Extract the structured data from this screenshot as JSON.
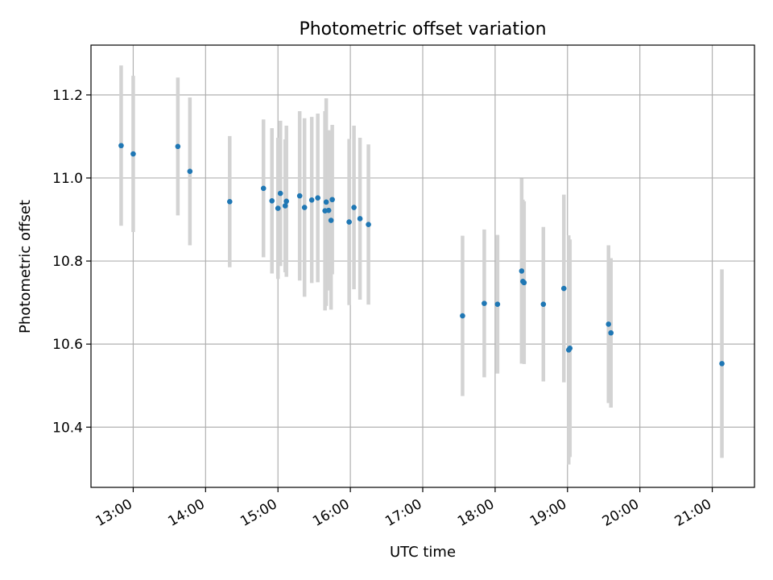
{
  "chart_data": {
    "type": "scatter",
    "title": "Photometric offset variation",
    "xlabel": "UTC time",
    "ylabel": "Photometric offset",
    "xlim": [
      "12:25",
      "21:35"
    ],
    "ylim": [
      10.255,
      11.32
    ],
    "grid": true,
    "x_ticks": [
      "13:00",
      "14:00",
      "15:00",
      "16:00",
      "17:00",
      "18:00",
      "19:00",
      "20:00",
      "21:00"
    ],
    "y_ticks": [
      "10.4",
      "10.6",
      "10.8",
      "11.0",
      "11.2"
    ],
    "colors": {
      "point": "#1f77b4",
      "error_bar": "#d3d3d3"
    },
    "series": [
      {
        "points": [
          {
            "x": "12:50",
            "y": 11.078,
            "yerr": 0.193
          },
          {
            "x": "13:00",
            "y": 11.058,
            "yerr": 0.188
          },
          {
            "x": "13:37",
            "y": 11.076,
            "yerr": 0.166
          },
          {
            "x": "13:47",
            "y": 11.016,
            "yerr": 0.178
          },
          {
            "x": "14:20",
            "y": 10.943,
            "yerr": 0.158
          },
          {
            "x": "14:48",
            "y": 10.975,
            "yerr": 0.166
          },
          {
            "x": "14:55",
            "y": 10.945,
            "yerr": 0.175
          },
          {
            "x": "15:00",
            "y": 10.927,
            "yerr": 0.17
          },
          {
            "x": "15:02",
            "y": 10.963,
            "yerr": 0.175
          },
          {
            "x": "15:06",
            "y": 10.933,
            "yerr": 0.16
          },
          {
            "x": "15:07",
            "y": 10.944,
            "yerr": 0.182
          },
          {
            "x": "15:18",
            "y": 10.957,
            "yerr": 0.204
          },
          {
            "x": "15:22",
            "y": 10.929,
            "yerr": 0.215
          },
          {
            "x": "15:28",
            "y": 10.947,
            "yerr": 0.2
          },
          {
            "x": "15:33",
            "y": 10.952,
            "yerr": 0.203
          },
          {
            "x": "15:39",
            "y": 10.921,
            "yerr": 0.24
          },
          {
            "x": "15:40",
            "y": 10.942,
            "yerr": 0.25
          },
          {
            "x": "15:42",
            "y": 10.922,
            "yerr": 0.193
          },
          {
            "x": "15:44",
            "y": 10.898,
            "yerr": 0.215
          },
          {
            "x": "15:45",
            "y": 10.948,
            "yerr": 0.18
          },
          {
            "x": "15:59",
            "y": 10.894,
            "yerr": 0.2
          },
          {
            "x": "16:03",
            "y": 10.929,
            "yerr": 0.197
          },
          {
            "x": "16:08",
            "y": 10.902,
            "yerr": 0.195
          },
          {
            "x": "16:15",
            "y": 10.888,
            "yerr": 0.193
          },
          {
            "x": "17:33",
            "y": 10.668,
            "yerr": 0.193
          },
          {
            "x": "17:51",
            "y": 10.698,
            "yerr": 0.178
          },
          {
            "x": "18:02",
            "y": 10.696,
            "yerr": 0.167
          },
          {
            "x": "18:22",
            "y": 10.776,
            "yerr": 0.223
          },
          {
            "x": "18:23",
            "y": 10.751,
            "yerr": 0.197
          },
          {
            "x": "18:24",
            "y": 10.748,
            "yerr": 0.196
          },
          {
            "x": "18:40",
            "y": 10.696,
            "yerr": 0.186
          },
          {
            "x": "18:57",
            "y": 10.734,
            "yerr": 0.226
          },
          {
            "x": "19:01",
            "y": 10.586,
            "yerr": 0.276
          },
          {
            "x": "19:02",
            "y": 10.59,
            "yerr": 0.262
          },
          {
            "x": "19:34",
            "y": 10.648,
            "yerr": 0.19
          },
          {
            "x": "19:36",
            "y": 10.627,
            "yerr": 0.18
          },
          {
            "x": "21:08",
            "y": 10.553,
            "yerr": 0.227
          }
        ]
      }
    ]
  }
}
